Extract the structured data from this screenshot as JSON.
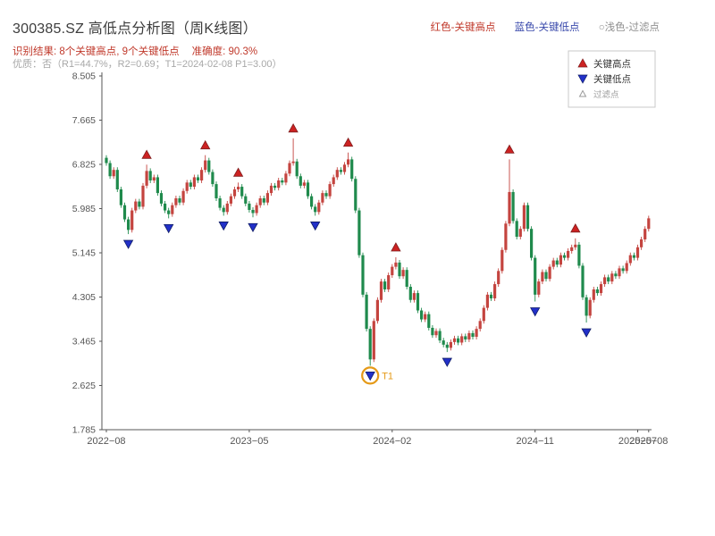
{
  "header": {
    "title": "300385.SZ 高低点分析图（周K线图）",
    "legend": {
      "high": "红色-关键高点",
      "low": "蓝色-关键低点",
      "filter": "○浅色-过滤点"
    },
    "result_text": "识别结果: 8个关键高点, 9个关键低点",
    "accuracy_text": "准确度: 90.3%",
    "quality_text": "优质：否（R1=44.7%，R2=0.69；T1=2024-02-08 P1=3.00）"
  },
  "chart_data": {
    "type": "candlestick",
    "symbol": "300385.SZ",
    "timeframe": "weekly",
    "title": "300385.SZ 高低点分析图（周K线图）",
    "ylim": [
      1.785,
      8.505
    ],
    "y_ticks": [
      1.785,
      2.625,
      3.465,
      4.305,
      5.145,
      5.985,
      6.825,
      7.665,
      8.505
    ],
    "x_ticks": [
      {
        "index": 0,
        "label": "2022−08"
      },
      {
        "index": 39,
        "label": "2023−05"
      },
      {
        "index": 78,
        "label": "2024−02"
      },
      {
        "index": 117,
        "label": "2024−11"
      },
      {
        "index": 145,
        "label": "2025−07"
      },
      {
        "index": 148,
        "label": "2025−08"
      }
    ],
    "up_color": "#c4443f",
    "down_color": "#1f8a4c",
    "first_open": 6.95,
    "closes": [
      6.85,
      6.6,
      6.72,
      6.35,
      6.05,
      5.78,
      5.58,
      5.95,
      6.12,
      6.02,
      6.42,
      6.7,
      6.52,
      6.58,
      6.28,
      6.08,
      5.95,
      5.88,
      6.05,
      6.18,
      6.1,
      6.32,
      6.48,
      6.4,
      6.58,
      6.52,
      6.72,
      6.9,
      6.68,
      6.45,
      6.18,
      6.0,
      5.92,
      6.08,
      6.22,
      6.35,
      6.4,
      6.22,
      6.08,
      5.96,
      5.9,
      6.05,
      6.18,
      6.1,
      6.28,
      6.42,
      6.38,
      6.52,
      6.48,
      6.65,
      6.85,
      6.88,
      6.6,
      6.42,
      6.48,
      6.22,
      6.02,
      5.92,
      6.1,
      6.28,
      6.22,
      6.45,
      6.58,
      6.72,
      6.68,
      6.82,
      6.92,
      6.55,
      5.95,
      5.1,
      4.35,
      3.7,
      3.12,
      3.85,
      4.25,
      4.6,
      4.45,
      4.72,
      4.88,
      4.96,
      4.7,
      4.82,
      4.5,
      4.25,
      4.38,
      4.05,
      3.88,
      3.98,
      3.72,
      3.58,
      3.66,
      3.48,
      3.4,
      3.34,
      3.45,
      3.52,
      3.44,
      3.56,
      3.5,
      3.62,
      3.55,
      3.7,
      3.85,
      4.1,
      4.35,
      4.28,
      4.55,
      4.8,
      5.2,
      5.7,
      6.3,
      5.75,
      5.45,
      5.6,
      6.05,
      5.6,
      5.05,
      4.35,
      4.6,
      4.78,
      4.65,
      4.88,
      5.0,
      4.92,
      5.1,
      5.05,
      5.18,
      5.25,
      5.3,
      4.9,
      4.3,
      3.95,
      4.25,
      4.45,
      4.38,
      4.55,
      4.68,
      4.6,
      4.75,
      4.7,
      4.85,
      4.8,
      4.95,
      5.1,
      5.05,
      5.25,
      5.4,
      5.6,
      5.8
    ],
    "key_highs": [
      {
        "index": 11,
        "high": 6.82
      },
      {
        "index": 27,
        "high": 7.0
      },
      {
        "index": 36,
        "high": 6.48
      },
      {
        "index": 51,
        "high": 7.32
      },
      {
        "index": 66,
        "high": 7.05
      },
      {
        "index": 79,
        "high": 5.06
      },
      {
        "index": 110,
        "high": 6.92
      },
      {
        "index": 128,
        "high": 5.42
      }
    ],
    "key_lows": [
      {
        "index": 6,
        "low": 5.5
      },
      {
        "index": 17,
        "low": 5.8
      },
      {
        "index": 32,
        "low": 5.85
      },
      {
        "index": 40,
        "low": 5.82
      },
      {
        "index": 57,
        "low": 5.85
      },
      {
        "index": 72,
        "low": 3.0
      },
      {
        "index": 93,
        "low": 3.26
      },
      {
        "index": 117,
        "low": 4.22
      },
      {
        "index": 131,
        "low": 3.82
      }
    ],
    "t1_marker": {
      "index": 72,
      "price": 3.0,
      "label": "T1",
      "color": "#e59a18"
    },
    "marker_colors": {
      "high_fill": "#cc2222",
      "high_edge": "#7f1d1d",
      "low_fill": "#2230c8",
      "low_edge": "#101d66"
    },
    "legend_box": {
      "items": [
        {
          "marker": "up-triangle-icon",
          "color": "#cc2222",
          "label": "关键高点"
        },
        {
          "marker": "down-triangle-icon",
          "color": "#2230c8",
          "label": "关键低点"
        },
        {
          "marker": "hollow-triangle-icon",
          "color": "#9a9a9a",
          "label": "过滤点"
        }
      ]
    }
  }
}
